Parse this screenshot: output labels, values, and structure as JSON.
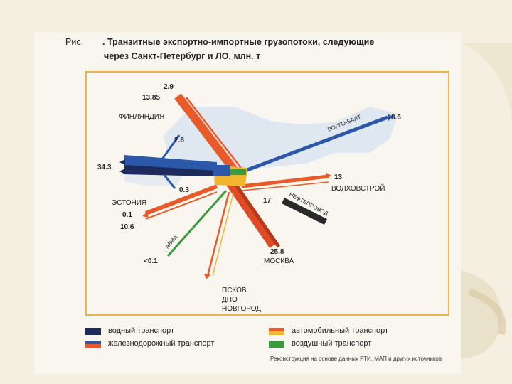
{
  "caption": {
    "prefix": "Рис.",
    "line1": ". Транзитные экспортно-импортные грузопотоки, следующие",
    "line2": "через Санкт-Петербург и ЛО, млн. т"
  },
  "diagram": {
    "finland": {
      "name": "ФИНЛЯНДИЯ",
      "val_top": "2.9",
      "val_second": "13.85",
      "val_branch": "2.6"
    },
    "water_west": {
      "value": "34.3"
    },
    "estonia": {
      "name": "ЭСТОНИЯ",
      "val_small": "0.3",
      "val_a": "0.1",
      "val_b": "10.6"
    },
    "avia": {
      "name": "АВИА",
      "value": "<0.1"
    },
    "pskov": {
      "line1": "ПСКОВ",
      "line2": "ДНО",
      "line3": "НОВГОРОД"
    },
    "moscow": {
      "name": "МОСКВА",
      "value": "25.8"
    },
    "pipeline": {
      "name": "НЕФТЕПРОВОД",
      "value": "17"
    },
    "volkhov": {
      "name": "ВОЛХОВСТРОЙ",
      "value": "13"
    },
    "volgobalt": {
      "name": "ВОЛГО-БАЛТ",
      "value": "8.6"
    }
  },
  "legend": {
    "water": "водный транспорт",
    "rail": "железнодорожный транспорт",
    "auto": "автомобильный транспорт",
    "air": "воздушный транспорт"
  },
  "source": "Реконструкция на основе данных РТИ, МАП и других источников",
  "colors": {
    "water": "#2b58a8",
    "water_dark": "#1c2b5c",
    "rail": "#e85a2a",
    "auto": "#f2b530",
    "air": "#3a9a3e",
    "pipeline": "#2a2a2a",
    "frame": "#e9b24a"
  }
}
